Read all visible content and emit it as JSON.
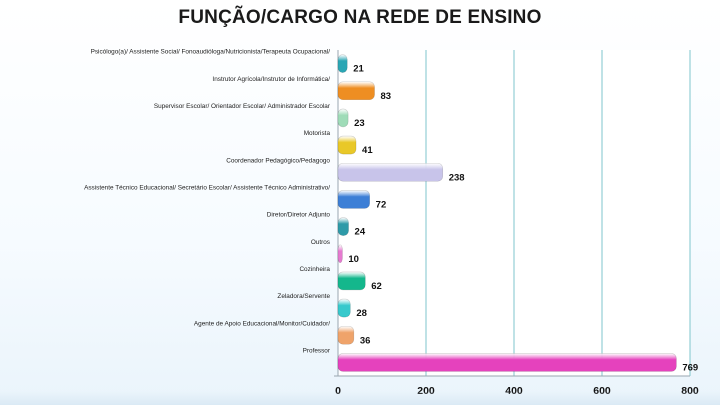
{
  "chart_data": {
    "type": "bar",
    "orientation": "horizontal",
    "title": "FUNÇÃO/CARGO NA REDE DE ENSINO",
    "xlabel": "",
    "ylabel": "",
    "xlim": [
      0,
      800
    ],
    "ticks": [
      "0",
      "200",
      "400",
      "600",
      "800"
    ],
    "grid": true,
    "legend": "none",
    "categories": [
      "Psicólogo(a)/ Assistente Social/ Fonoaudióloga/Nutricionista/Terapeuta Ocupacional/",
      "Instrutor Agrícola/Instrutor de Informática/",
      "Supervisor Escolar/ Orientador Escolar/ Administrador Escolar",
      "Motorista",
      "Coordenador Pedagógico/Pedagogo",
      "Assistente Técnico Educacional/ Secretário Escolar/ Assistente Técnico Administrativo/",
      "Diretor/Diretor Adjunto",
      "Outros",
      "Cozinheira",
      "Zeladora/Servente",
      "Agente de Apoio Educacional/Monitor/Cuidador/",
      "Professor"
    ],
    "values": [
      21,
      83,
      23,
      41,
      238,
      72,
      24,
      10,
      62,
      28,
      36,
      769
    ],
    "colors": [
      "#2aa6b4",
      "#ee8e22",
      "#9fdcb8",
      "#e9c828",
      "#c8c4ea",
      "#3d7fd6",
      "#2e9aa8",
      "#e67ad0",
      "#14b78c",
      "#37c9cc",
      "#efa36a",
      "#e542bd"
    ]
  }
}
